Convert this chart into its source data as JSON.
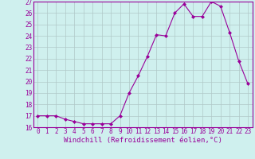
{
  "x": [
    0,
    1,
    2,
    3,
    4,
    5,
    6,
    7,
    8,
    9,
    10,
    11,
    12,
    13,
    14,
    15,
    16,
    17,
    18,
    19,
    20,
    21,
    22,
    23
  ],
  "y": [
    17.0,
    17.0,
    17.0,
    16.7,
    16.5,
    16.3,
    16.3,
    16.3,
    16.3,
    17.0,
    19.0,
    20.5,
    22.2,
    24.1,
    24.0,
    26.0,
    26.8,
    25.7,
    25.7,
    27.0,
    26.6,
    24.3,
    21.8,
    19.8
  ],
  "line_color": "#990099",
  "marker": "D",
  "marker_size": 2.0,
  "bg_color": "#cff0ee",
  "grid_color": "#b0c8c8",
  "xlim_min": -0.5,
  "xlim_max": 23.5,
  "ylim_min": 16,
  "ylim_max": 27,
  "yticks": [
    16,
    17,
    18,
    19,
    20,
    21,
    22,
    23,
    24,
    25,
    26,
    27
  ],
  "xticks": [
    0,
    1,
    2,
    3,
    4,
    5,
    6,
    7,
    8,
    9,
    10,
    11,
    12,
    13,
    14,
    15,
    16,
    17,
    18,
    19,
    20,
    21,
    22,
    23
  ],
  "xtick_labels": [
    "0",
    "1",
    "2",
    "3",
    "4",
    "5",
    "6",
    "7",
    "8",
    "9",
    "10",
    "11",
    "12",
    "13",
    "14",
    "15",
    "16",
    "17",
    "18",
    "19",
    "20",
    "21",
    "22",
    "23"
  ],
  "ytick_labels": [
    "16",
    "17",
    "18",
    "19",
    "20",
    "21",
    "22",
    "23",
    "24",
    "25",
    "26",
    "27"
  ],
  "tick_color": "#990099",
  "tick_fontsize": 5.5,
  "xlabel": "Windchill (Refroidissement éolien,°C)",
  "xlabel_fontsize": 6.5,
  "xlabel_color": "#990099",
  "spine_color": "#990099",
  "linewidth": 0.8
}
